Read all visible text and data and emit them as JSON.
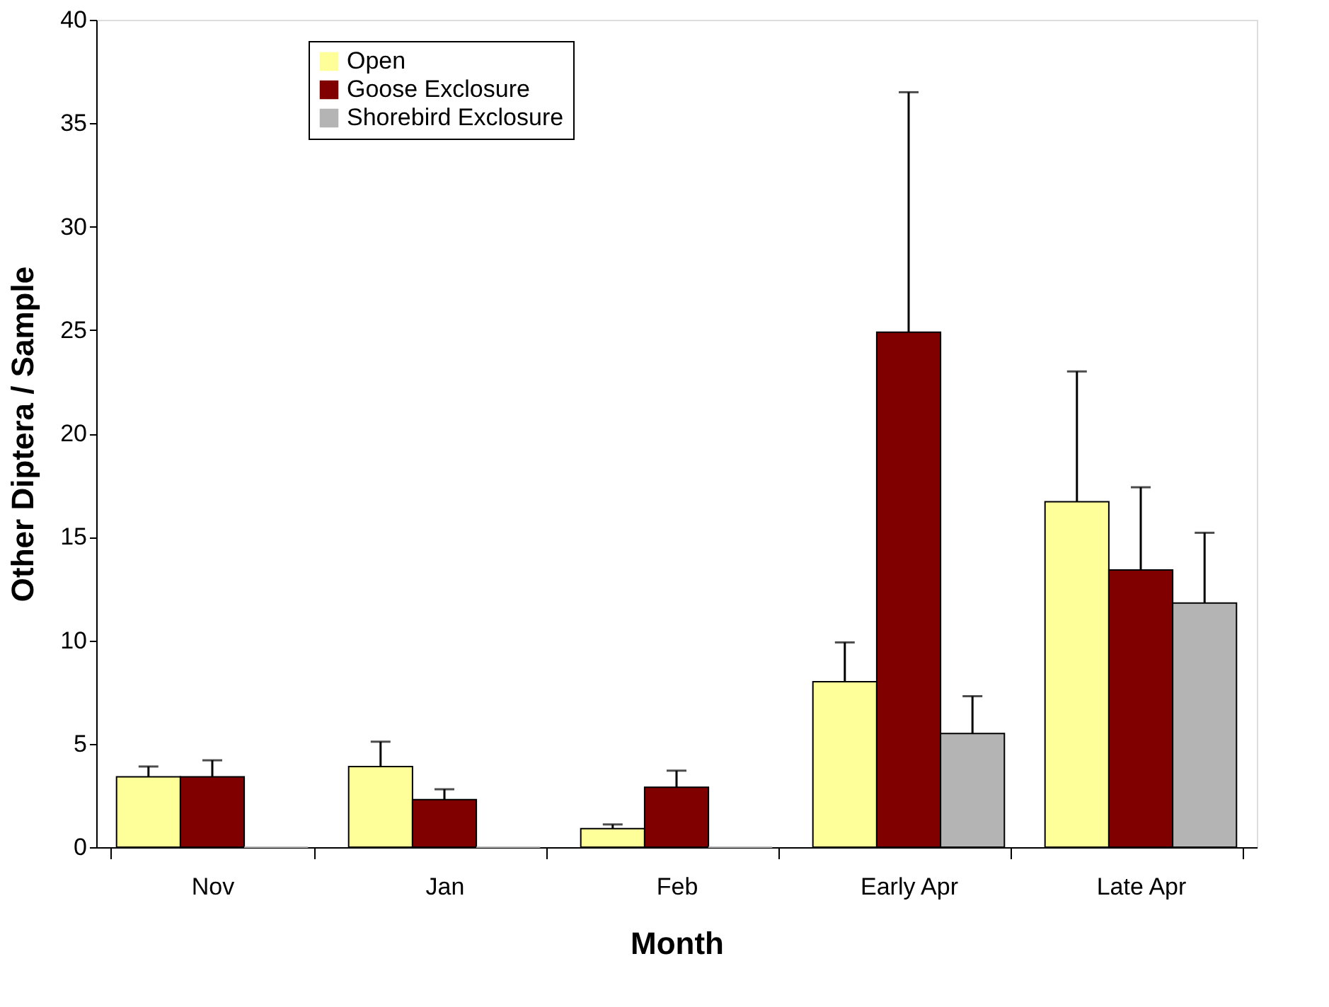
{
  "chart_data": {
    "type": "bar",
    "xlabel": "Month",
    "ylabel": "Other Diptera / Sample",
    "categories": [
      "Nov",
      "Jan",
      "Feb",
      "Early Apr",
      "Late Apr"
    ],
    "series": [
      {
        "name": "Open",
        "color": "#ffff99",
        "values": [
          3.4,
          3.9,
          0.9,
          8.0,
          16.7
        ],
        "errors": [
          [
            3.4,
            3.9
          ],
          [
            3.9,
            5.1
          ],
          [
            0.9,
            1.1
          ],
          [
            8.0,
            9.9
          ],
          [
            16.7,
            23.0
          ]
        ]
      },
      {
        "name": "Goose Exclosure",
        "color": "#800000",
        "values": [
          3.4,
          2.3,
          2.9,
          24.9,
          13.4
        ],
        "errors": [
          [
            3.4,
            4.2
          ],
          [
            2.3,
            2.8
          ],
          [
            2.9,
            3.7
          ],
          [
            24.9,
            36.5
          ],
          [
            13.4,
            17.4
          ]
        ]
      },
      {
        "name": "Shorebird Exclosure",
        "color": "#b4b4b4",
        "values": [
          0,
          0,
          0,
          5.5,
          11.8
        ],
        "errors": [
          null,
          null,
          null,
          [
            5.5,
            7.3
          ],
          [
            11.8,
            15.2
          ]
        ]
      }
    ],
    "ylim": [
      0,
      40
    ],
    "yticks": [
      0,
      5,
      10,
      15,
      20,
      25,
      30,
      35,
      40
    ],
    "grid": false,
    "legend": "top left"
  }
}
